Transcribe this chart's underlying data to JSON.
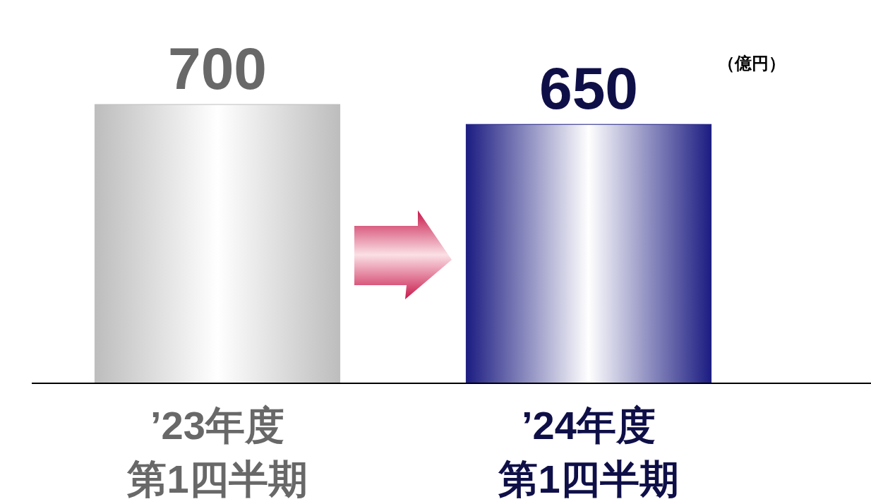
{
  "chart_data": {
    "type": "bar",
    "categories": [
      "’23年度第1四半期",
      "’24年度第1四半期"
    ],
    "values": [
      700,
      650
    ],
    "colors": [
      "#bdbdbd",
      "#1c1c82"
    ],
    "data_labels": true,
    "annotations": [
      "（億円）"
    ]
  }
}
